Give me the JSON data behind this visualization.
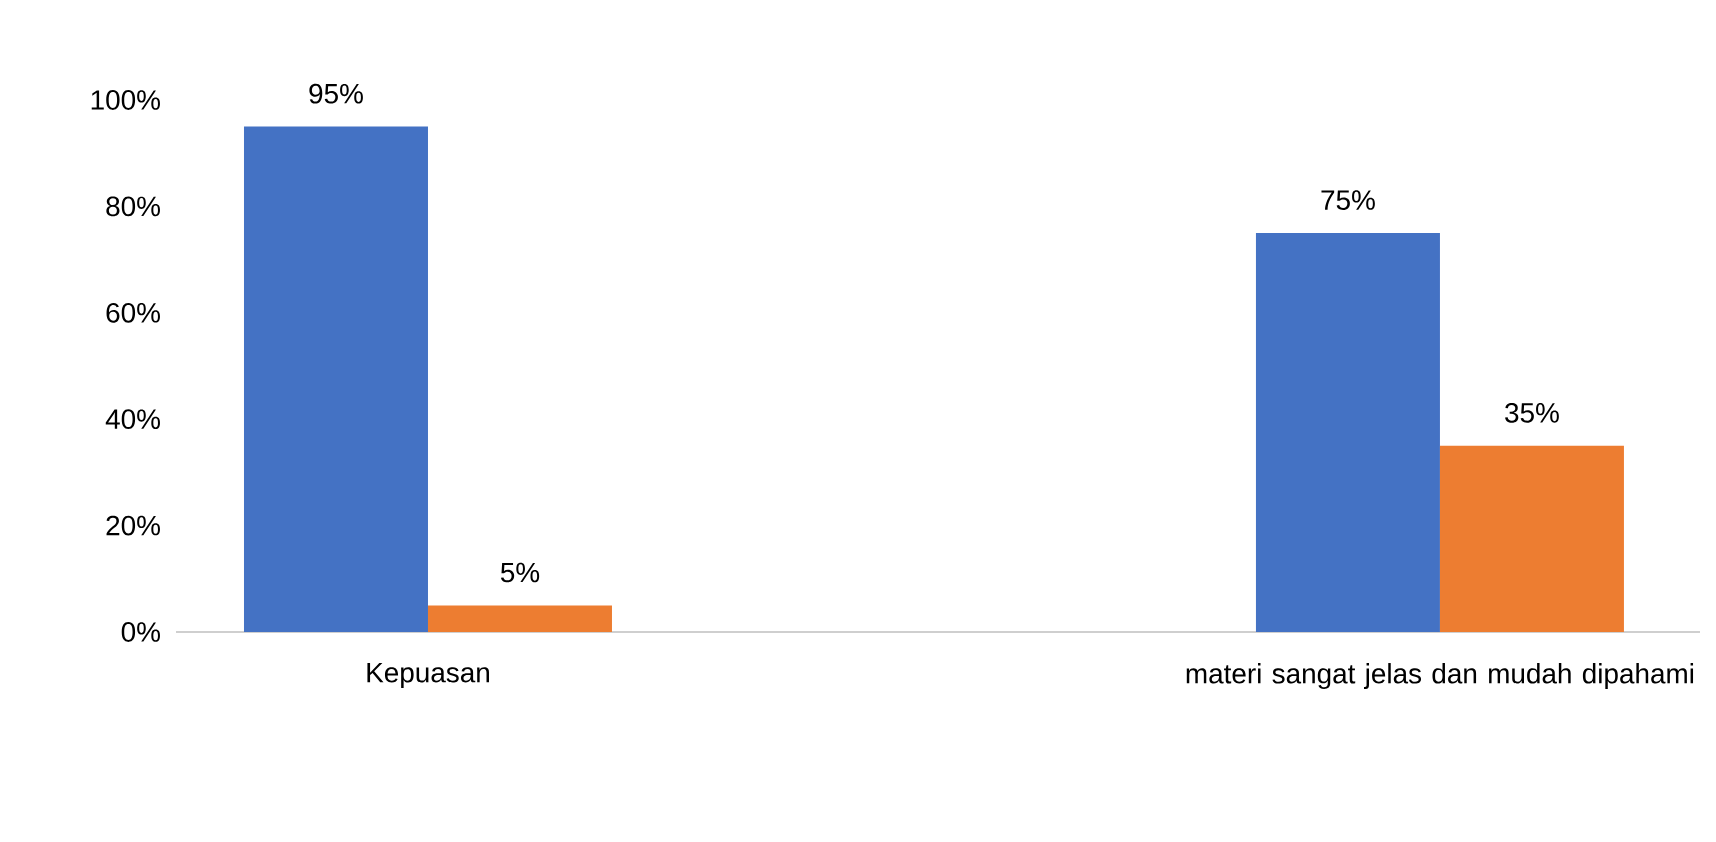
{
  "chart_data": {
    "type": "bar",
    "categories": [
      "Kepuasan",
      "materi sangat jelas dan mudah dipahami"
    ],
    "series": [
      {
        "color": "#4472c4",
        "values": [
          95,
          75
        ],
        "value_labels": [
          "95%",
          "75%"
        ]
      },
      {
        "color": "#ed7d31",
        "values": [
          5,
          35
        ],
        "value_labels": [
          "5%",
          "35%"
        ]
      }
    ],
    "ylim": [
      0,
      100
    ],
    "yticks": [
      {
        "value": 0,
        "label": "0%"
      },
      {
        "value": 20,
        "label": "20%"
      },
      {
        "value": 40,
        "label": "40%"
      },
      {
        "value": 60,
        "label": "60%"
      },
      {
        "value": 80,
        "label": "80%"
      },
      {
        "value": 100,
        "label": "100%"
      }
    ],
    "grid": false
  }
}
